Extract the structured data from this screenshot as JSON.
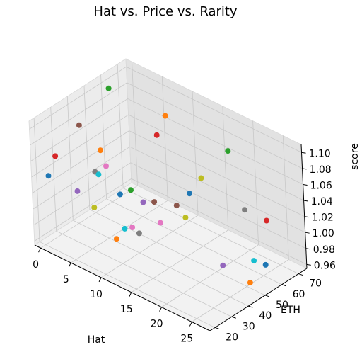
{
  "chart_data": {
    "type": "scatter",
    "projection": "3d",
    "title": "Hat vs. Price vs. Rarity",
    "xlabel": "Hat",
    "ylabel": "ETH",
    "zlabel": "score",
    "xlim": [
      -1,
      28
    ],
    "ylim": [
      17,
      75
    ],
    "zlim": [
      0.955,
      1.11
    ],
    "x_ticks": [
      0,
      5,
      10,
      15,
      20,
      25
    ],
    "y_ticks": [
      20,
      30,
      40,
      50,
      60,
      70
    ],
    "z_ticks": [
      0.96,
      0.98,
      1.0,
      1.02,
      1.04,
      1.06,
      1.08,
      1.1
    ],
    "x_tick_labels": [
      "0",
      "5",
      "10",
      "15",
      "20",
      "25"
    ],
    "y_tick_labels": [
      "20",
      "30",
      "40",
      "50",
      "60",
      "70"
    ],
    "z_tick_labels": [
      "0.96",
      "0.98",
      "1.00",
      "1.02",
      "1.04",
      "1.06",
      "1.08",
      "1.10"
    ],
    "grid": true,
    "colors": [
      "#1f77b4",
      "#ff7f0e",
      "#2ca02c",
      "#d62728",
      "#9467bd",
      "#8c564b",
      "#e377c2",
      "#7f7f7f",
      "#bcbd22",
      "#17becf"
    ],
    "points": [
      {
        "x": 1.0,
        "y": 20.0,
        "z": 1.045
      },
      {
        "x": 3.0,
        "y": 44.0,
        "z": 1.052
      },
      {
        "x": 0.5,
        "y": 59.0,
        "z": 1.1
      },
      {
        "x": 2.0,
        "y": 21.0,
        "z": 1.072
      },
      {
        "x": 2.0,
        "y": 33.0,
        "z": 1.012
      },
      {
        "x": 2.5,
        "y": 34.0,
        "z": 1.095
      },
      {
        "x": 5.0,
        "y": 40.0,
        "z": 1.045
      },
      {
        "x": 6.0,
        "y": 30.0,
        "z": 1.055
      },
      {
        "x": 8.5,
        "y": 20.0,
        "z": 1.033
      },
      {
        "x": 6.0,
        "y": 32.0,
        "z": 1.049
      },
      {
        "x": 6.0,
        "y": 44.0,
        "z": 1.008
      },
      {
        "x": 9.0,
        "y": 62.0,
        "z": 1.093
      },
      {
        "x": 9.0,
        "y": 40.0,
        "z": 1.03
      },
      {
        "x": 8.0,
        "y": 60.0,
        "z": 1.068
      },
      {
        "x": 11.0,
        "y": 40.0,
        "z": 1.022
      },
      {
        "x": 12.0,
        "y": 43.0,
        "z": 1.022
      },
      {
        "x": 11.0,
        "y": 33.0,
        "z": 1.0
      },
      {
        "x": 13.0,
        "y": 30.0,
        "z": 1.004
      },
      {
        "x": 14.0,
        "y": 64.0,
        "z": 1.031
      },
      {
        "x": 13.5,
        "y": 20.0,
        "z": 1.025
      },
      {
        "x": 16.0,
        "y": 50.0,
        "z": 1.038
      },
      {
        "x": 10.0,
        "y": 27.0,
        "z": 0.99
      },
      {
        "x": 17.0,
        "y": 70.0,
        "z": 1.068
      },
      {
        "x": 23.0,
        "y": 70.0,
        "z": 1.003
      },
      {
        "x": 20.5,
        "y": 52.0,
        "z": 0.962
      },
      {
        "x": 17.5,
        "y": 37.0,
        "z": 1.046
      },
      {
        "x": 19.0,
        "y": 22.0,
        "z": 1.05
      },
      {
        "x": 22.0,
        "y": 61.0,
        "z": 1.025
      },
      {
        "x": 19.5,
        "y": 35.0,
        "z": 1.041
      },
      {
        "x": 25.5,
        "y": 53.0,
        "z": 0.985
      },
      {
        "x": 26.0,
        "y": 58.0,
        "z": 0.975
      },
      {
        "x": 25.0,
        "y": 52.0,
        "z": 0.957
      }
    ]
  }
}
